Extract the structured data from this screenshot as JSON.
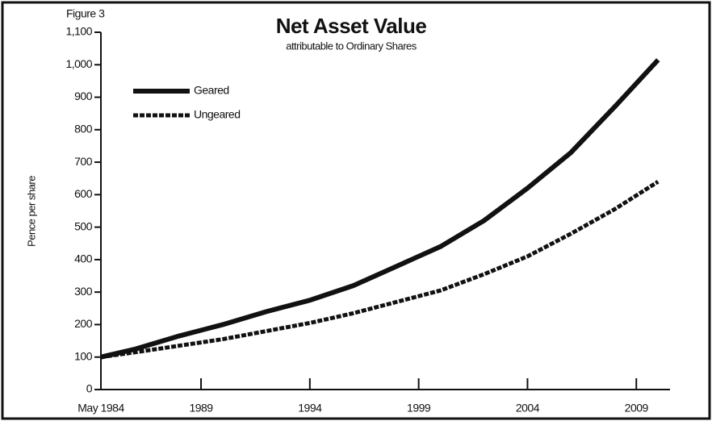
{
  "chart_data": {
    "type": "line",
    "title": "Net Asset Value",
    "subtitle": "attributable to Ordinary Shares",
    "annotation": "Figure 3",
    "ylabel": "Pence per share",
    "x": [
      1984.4,
      1986,
      1988,
      1990,
      1992,
      1994,
      1996,
      1998,
      2000,
      2002,
      2004,
      2006,
      2008,
      2010
    ],
    "series": [
      {
        "name": "Geared",
        "color": "#111111",
        "style": "solid",
        "values": [
          100,
          125,
          165,
          200,
          240,
          275,
          320,
          380,
          440,
          520,
          620,
          730,
          870,
          1015
        ]
      },
      {
        "name": "Ungeared",
        "color": "#111111",
        "style": "dashed",
        "values": [
          100,
          115,
          135,
          155,
          180,
          205,
          235,
          270,
          305,
          355,
          410,
          480,
          555,
          640
        ]
      }
    ],
    "xlim": [
      1984.4,
      2010.4
    ],
    "xticks": [
      {
        "value": 1984.4,
        "label": "May 1984"
      },
      1989,
      1994,
      1999,
      2004,
      2009
    ],
    "ylim": [
      0,
      1100
    ],
    "yticks": [
      0,
      100,
      200,
      300,
      400,
      500,
      600,
      700,
      800,
      900,
      {
        "value": 1000,
        "label": "1,000"
      },
      {
        "value": 1100,
        "label": "1,100"
      }
    ],
    "grid": false,
    "legend": "upper left"
  }
}
